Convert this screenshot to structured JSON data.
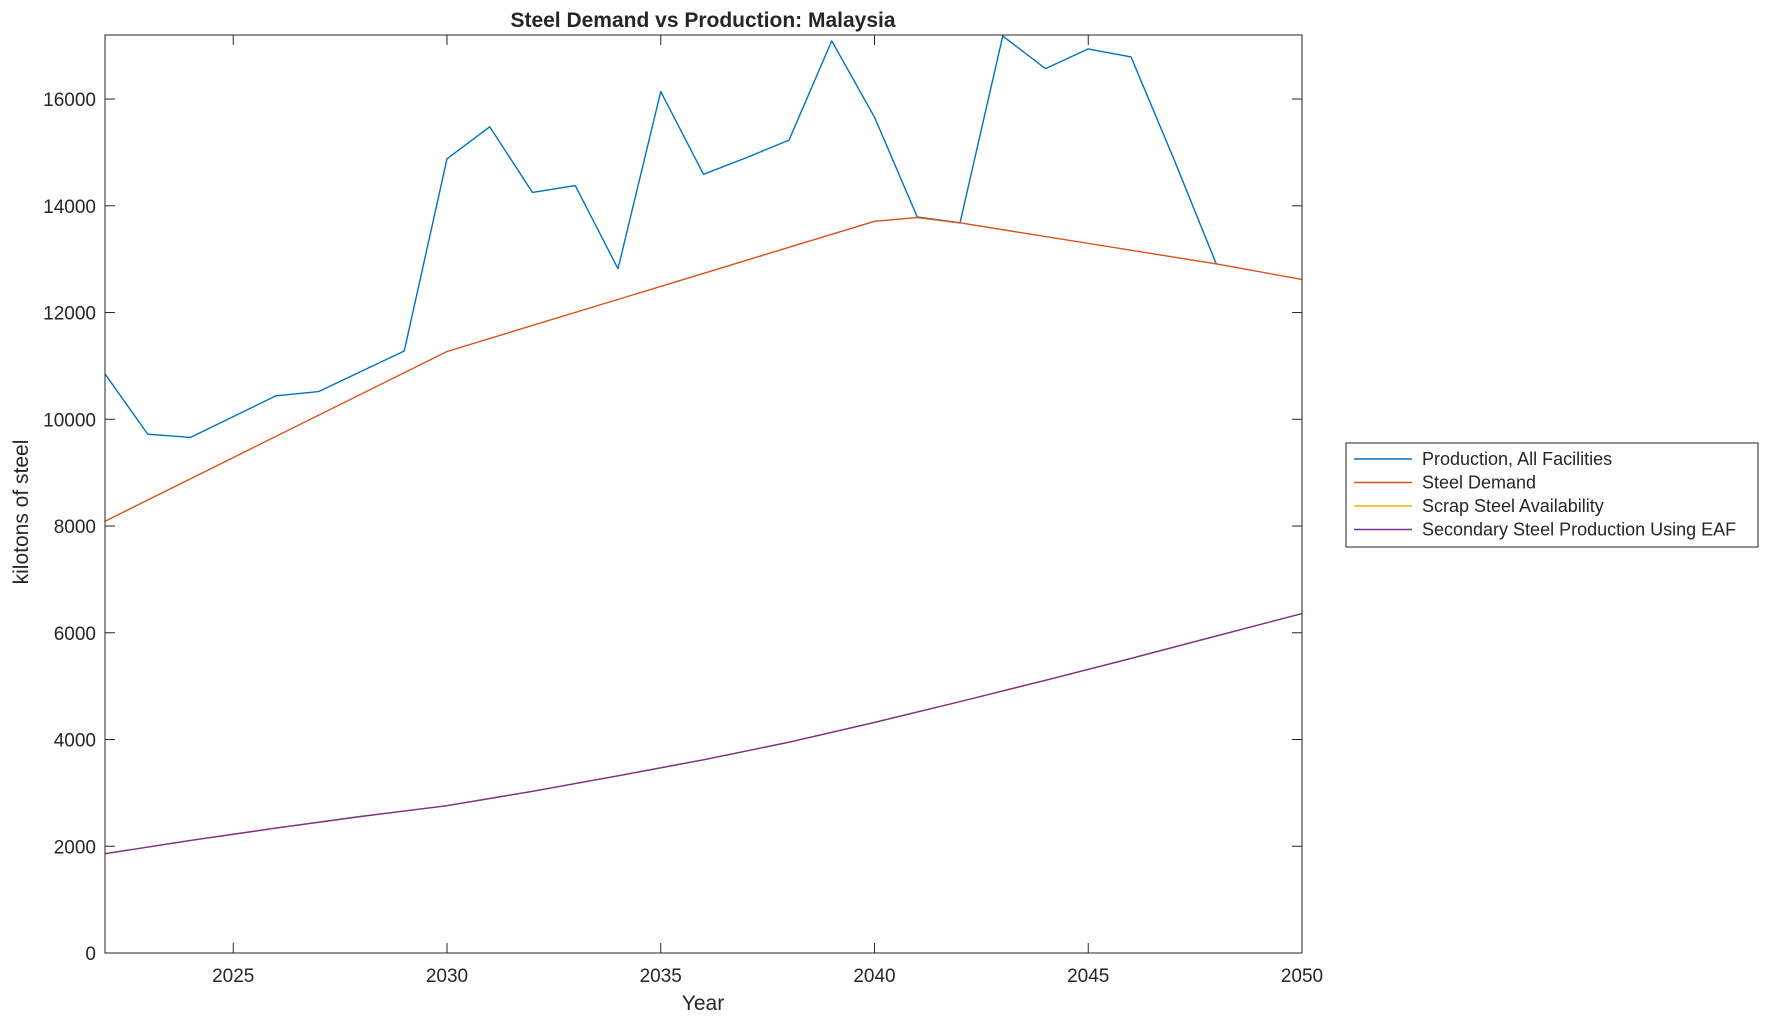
{
  "chart_data": {
    "type": "line",
    "title": "Steel Demand vs Production: Malaysia",
    "xlabel": "Year",
    "ylabel": "kilotons of steel",
    "xlim": [
      2022,
      2050
    ],
    "ylim": [
      0,
      17200
    ],
    "xticks": [
      2025,
      2030,
      2035,
      2040,
      2045,
      2050
    ],
    "yticks": [
      0,
      2000,
      4000,
      6000,
      8000,
      10000,
      12000,
      14000,
      16000
    ],
    "grid": false,
    "legend_position": "outside-right",
    "series": [
      {
        "name": "Production, All Facilities",
        "color": "#0072BD",
        "x": [
          2022,
          2023,
          2024,
          2025,
          2026,
          2027,
          2028,
          2029,
          2030,
          2031,
          2032,
          2033,
          2034,
          2035,
          2036,
          2037,
          2038,
          2039,
          2040,
          2041,
          2042,
          2043,
          2044,
          2045,
          2046,
          2047,
          2048
        ],
        "values": [
          10850,
          9720,
          9660,
          10050,
          10440,
          10520,
          10900,
          11280,
          14880,
          15480,
          14250,
          14380,
          12820,
          16140,
          14590,
          14900,
          15230,
          17090,
          15660,
          13790,
          13680,
          17180,
          16570,
          16940,
          16790,
          14880,
          12900
        ]
      },
      {
        "name": "Steel Demand",
        "color": "#D95319",
        "x": [
          2022,
          2030,
          2040,
          2041,
          2042,
          2048,
          2050
        ],
        "values": [
          8090,
          11270,
          13710,
          13780,
          13680,
          12910,
          12620
        ]
      },
      {
        "name": "Scrap Steel Availability",
        "color": "#EDB120",
        "x": [
          2022,
          2024,
          2026,
          2028,
          2030,
          2032,
          2034,
          2036,
          2038,
          2040,
          2042,
          2044,
          2046,
          2048,
          2050
        ],
        "values": [
          1860,
          2110,
          2340,
          2560,
          2760,
          3030,
          3320,
          3620,
          3950,
          4320,
          4710,
          5110,
          5520,
          5940,
          6360
        ]
      },
      {
        "name": "Secondary Steel Production Using EAF",
        "color": "#7E2F8E",
        "x": [
          2022,
          2024,
          2026,
          2028,
          2030,
          2032,
          2034,
          2036,
          2038,
          2040,
          2042,
          2044,
          2046,
          2048,
          2050
        ],
        "values": [
          1860,
          2110,
          2340,
          2560,
          2760,
          3030,
          3320,
          3620,
          3950,
          4320,
          4710,
          5110,
          5520,
          5940,
          6360
        ]
      }
    ]
  }
}
